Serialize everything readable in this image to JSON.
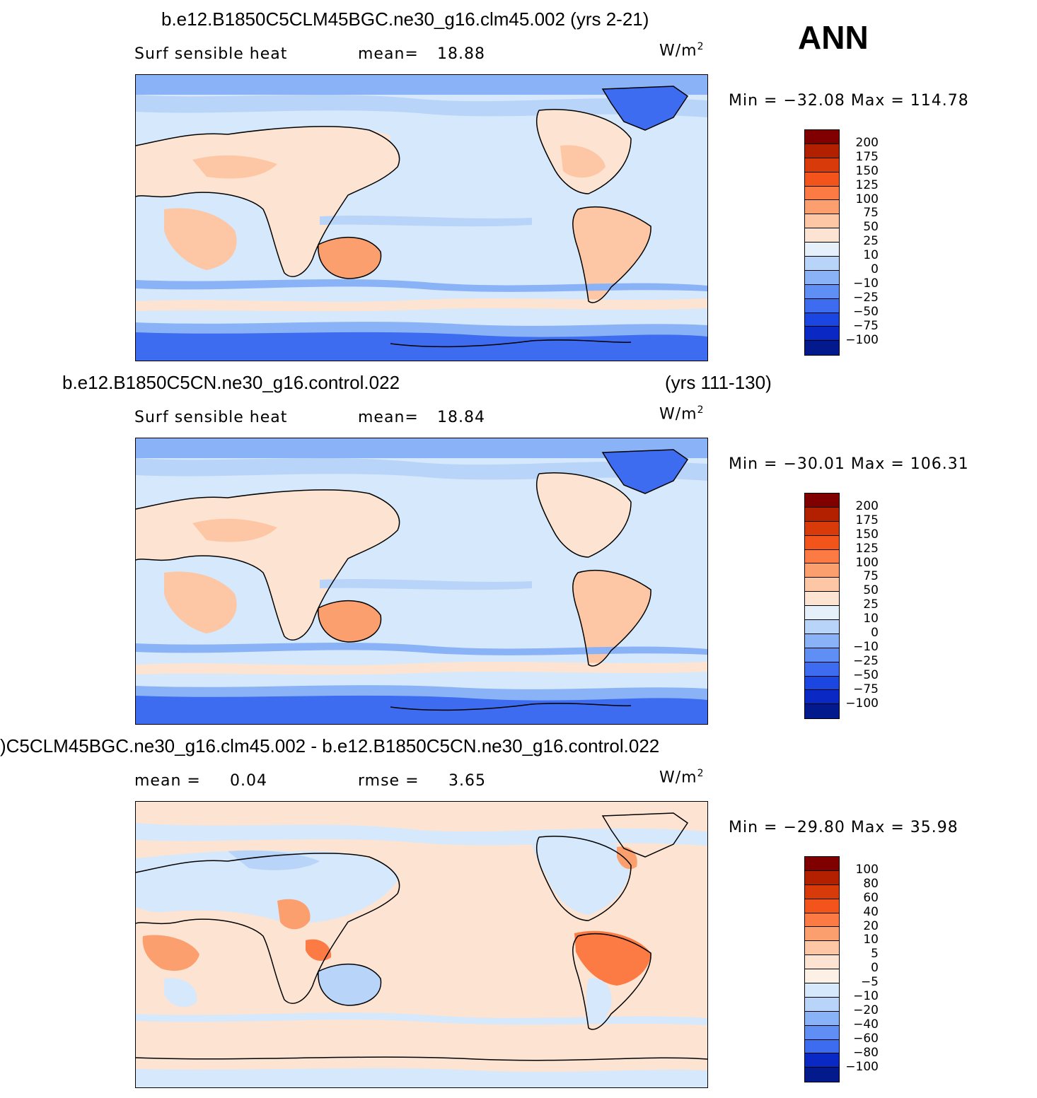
{
  "season": "ANN",
  "units": "W/m",
  "units_sup": "2",
  "panels": [
    {
      "title": "b.e12.B1850C5CLM45BGC.ne30_g16.clm45.002 (yrs 2-21)",
      "title_right": "",
      "field": "Surf  sensible  heat",
      "stat1_label": "mean=",
      "stat1_value": "18.88",
      "stat2_label": "",
      "stat2_value": "",
      "minmax": "Min  =  −32.08  Max  =  114.78",
      "levels": [
        "200",
        "175",
        "150",
        "125",
        "100",
        "75",
        "50",
        "25",
        "10",
        "0",
        "−10",
        "−25",
        "−50",
        "−75",
        "−100"
      ],
      "colors": [
        "#800000",
        "#b22000",
        "#d83a0a",
        "#f2541c",
        "#fc7a44",
        "#fc9f6e",
        "#fdc6a4",
        "#fde4d2",
        "#e6f0fb",
        "#b8d4f8",
        "#89b3f6",
        "#5f8ff4",
        "#3d6cf0",
        "#1b46e2",
        "#0a28c4",
        "#021a8c"
      ]
    },
    {
      "title": "b.e12.B1850C5CN.ne30_g16.control.022",
      "title_right": "(yrs 111-130)",
      "field": "Surf  sensible  heat",
      "stat1_label": "mean=",
      "stat1_value": "18.84",
      "stat2_label": "",
      "stat2_value": "",
      "minmax": "Min  =  −30.01  Max  =  106.31",
      "levels": [
        "200",
        "175",
        "150",
        "125",
        "100",
        "75",
        "50",
        "25",
        "10",
        "0",
        "−10",
        "−25",
        "−50",
        "−75",
        "−100"
      ],
      "colors": [
        "#800000",
        "#b22000",
        "#d83a0a",
        "#f2541c",
        "#fc7a44",
        "#fc9f6e",
        "#fdc6a4",
        "#fde4d2",
        "#e6f0fb",
        "#b8d4f8",
        "#89b3f6",
        "#5f8ff4",
        "#3d6cf0",
        "#1b46e2",
        "#0a28c4",
        "#021a8c"
      ]
    },
    {
      "title": ")C5CLM45BGC.ne30_g16.clm45.002 - b.e12.B1850C5CN.ne30_g16.control.022",
      "title_right": "",
      "field": "",
      "stat1_label": "mean  =",
      "stat1_value": "0.04",
      "stat2_label": "rmse  =",
      "stat2_value": "3.65",
      "minmax": "Min  =  −29.80  Max  =   35.98",
      "levels": [
        "100",
        "80",
        "60",
        "40",
        "20",
        "10",
        "5",
        "0",
        "−5",
        "−10",
        "−20",
        "−40",
        "−60",
        "−80",
        "−100"
      ],
      "colors": [
        "#800000",
        "#b22000",
        "#d83a0a",
        "#f2541c",
        "#fc7a44",
        "#fc9f6e",
        "#fdc6a4",
        "#fde4d2",
        "#fdf1e6",
        "#d6e8fb",
        "#b8d4f8",
        "#89b3f6",
        "#5f8ff4",
        "#3d6cf0",
        "#0a28c4",
        "#021a8c"
      ]
    }
  ]
}
